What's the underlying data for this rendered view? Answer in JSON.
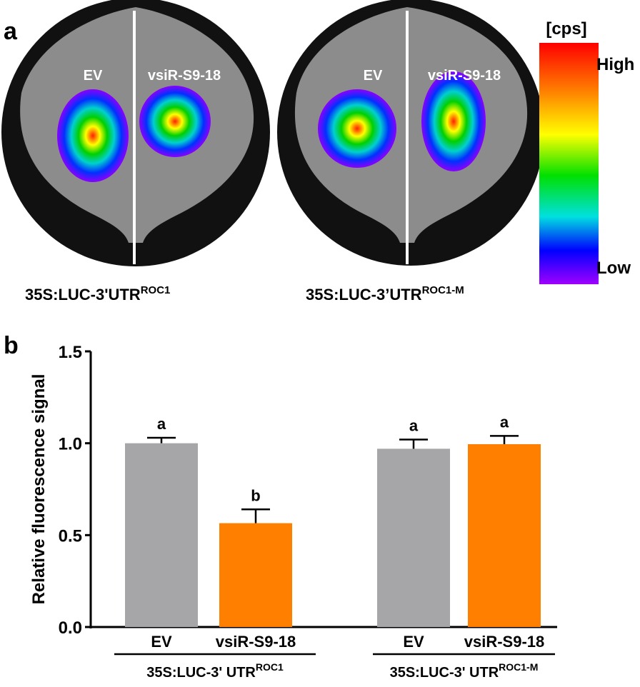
{
  "panel_a": {
    "label": "a",
    "images": [
      {
        "left_label": "EV",
        "right_label": "vsiR-S9-18",
        "caption": "35S:LUC-3'UTR",
        "caption_sup": "ROC1"
      },
      {
        "left_label": "EV",
        "right_label": "vsiR-S9-18",
        "caption": "35S:LUC-3’UTR",
        "caption_sup": "ROC1-M"
      }
    ],
    "colorbar": {
      "unit": "[cps]",
      "high": "High",
      "low": "Low"
    }
  },
  "chart_data": {
    "type": "bar",
    "panel_label": "b",
    "y_label": "Relative  fluorescence signal",
    "categories": [
      "EV",
      "vsiR-S9-18",
      "EV",
      "vsiR-S9-18"
    ],
    "values": [
      1.0,
      0.565,
      0.97,
      0.995
    ],
    "errors": [
      0.03,
      0.075,
      0.05,
      0.045
    ],
    "significance": [
      "a",
      "b",
      "a",
      "a"
    ],
    "colors": [
      "#a6a6a8",
      "#ff8000",
      "#a6a6a8",
      "#ff8000"
    ],
    "groups": [
      {
        "label": "35S:LUC-3' UTR",
        "sup": "ROC1"
      },
      {
        "label": "35S:LUC-3' UTR",
        "sup": "ROC1-M"
      }
    ],
    "ylim": [
      0,
      1.5
    ],
    "yticks": [
      {
        "value": 0,
        "label": "0.0"
      },
      {
        "value": 0.5,
        "label": "0.5"
      },
      {
        "value": 1,
        "label": "1.0"
      },
      {
        "value": 1.5,
        "label": "1.5"
      }
    ]
  }
}
